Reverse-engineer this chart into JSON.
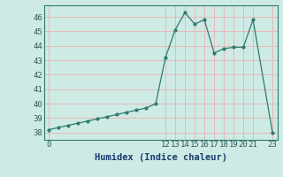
{
  "x": [
    0,
    1,
    2,
    3,
    4,
    5,
    6,
    7,
    8,
    9,
    10,
    11,
    12,
    13,
    14,
    15,
    16,
    17,
    18,
    19,
    20,
    21,
    23
  ],
  "y": [
    38.2,
    38.35,
    38.5,
    38.65,
    38.8,
    38.95,
    39.1,
    39.25,
    39.4,
    39.55,
    39.7,
    40.0,
    43.2,
    45.1,
    46.3,
    45.5,
    45.8,
    43.5,
    43.8,
    43.9,
    43.9,
    45.8,
    38.0
  ],
  "line_color": "#2d7a6e",
  "marker_color": "#2d7a6e",
  "bg_color": "#ceeae4",
  "grid_color_h": "#b8d8d2",
  "grid_color_v": "#e8b8b8",
  "xlabel": "Humidex (Indice chaleur)",
  "ylim": [
    37.5,
    46.8
  ],
  "xlim": [
    -0.5,
    23.5
  ],
  "yticks": [
    38,
    39,
    40,
    41,
    42,
    43,
    44,
    45,
    46
  ],
  "xticks": [
    0,
    12,
    13,
    14,
    15,
    16,
    17,
    18,
    19,
    20,
    21,
    23
  ],
  "xlabel_fontsize": 7.5,
  "tick_fontsize": 6.5
}
